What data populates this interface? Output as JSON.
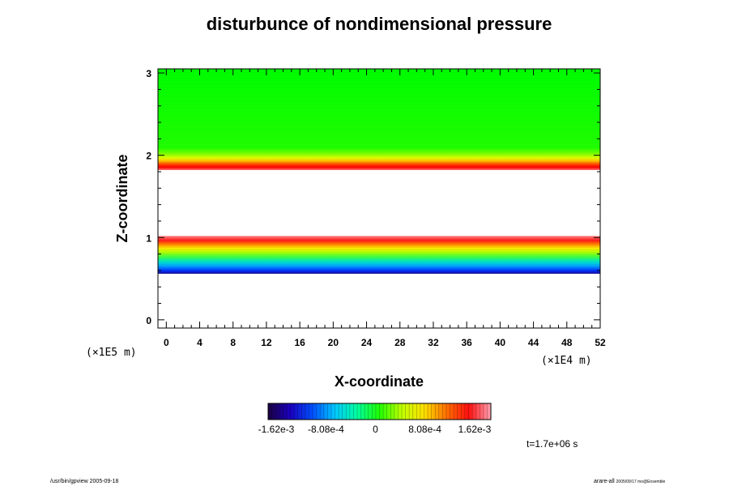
{
  "chart_data": {
    "type": "heatmap",
    "title": "disturbunce of nondimensional pressure",
    "xlabel": "X-coordinate",
    "ylabel": "Z-coordinate",
    "x_unit": "(×1E4 m)",
    "y_unit": "(×1E5 m)",
    "x_ticks": [
      "0",
      "4",
      "8",
      "12",
      "16",
      "20",
      "24",
      "28",
      "32",
      "36",
      "40",
      "44",
      "48",
      "52"
    ],
    "y_ticks": [
      "0",
      "1",
      "2",
      "3"
    ],
    "xlim": [
      -1,
      52
    ],
    "ylim": [
      -0.1,
      3.05
    ],
    "colorbar": {
      "min": -0.00162,
      "max": 0.00162,
      "tick_labels": [
        "-1.62e-3",
        "-8.08e-4",
        "0",
        "8.08e-4",
        "1.62e-3"
      ],
      "tick_values": [
        -0.00162,
        -0.000808,
        0,
        0.000808,
        0.00162
      ]
    },
    "bands": [
      {
        "z_from": 0.56,
        "z_to": 1.02,
        "gradient": "blue-to-red",
        "note_values": [
          -0.00162,
          0.00162
        ]
      },
      {
        "z_from": 1.82,
        "z_to": 3.05,
        "gradient": "red-to-green",
        "note_values": [
          0.00162,
          0
        ]
      }
    ],
    "time_label": "t=1.7e+06 s",
    "footer_left": "/usr/bin/gpview 2005-09-18",
    "footer_right": "arare-all",
    "footer_right_sub": "2005/09/17 mo@Ensemble"
  }
}
